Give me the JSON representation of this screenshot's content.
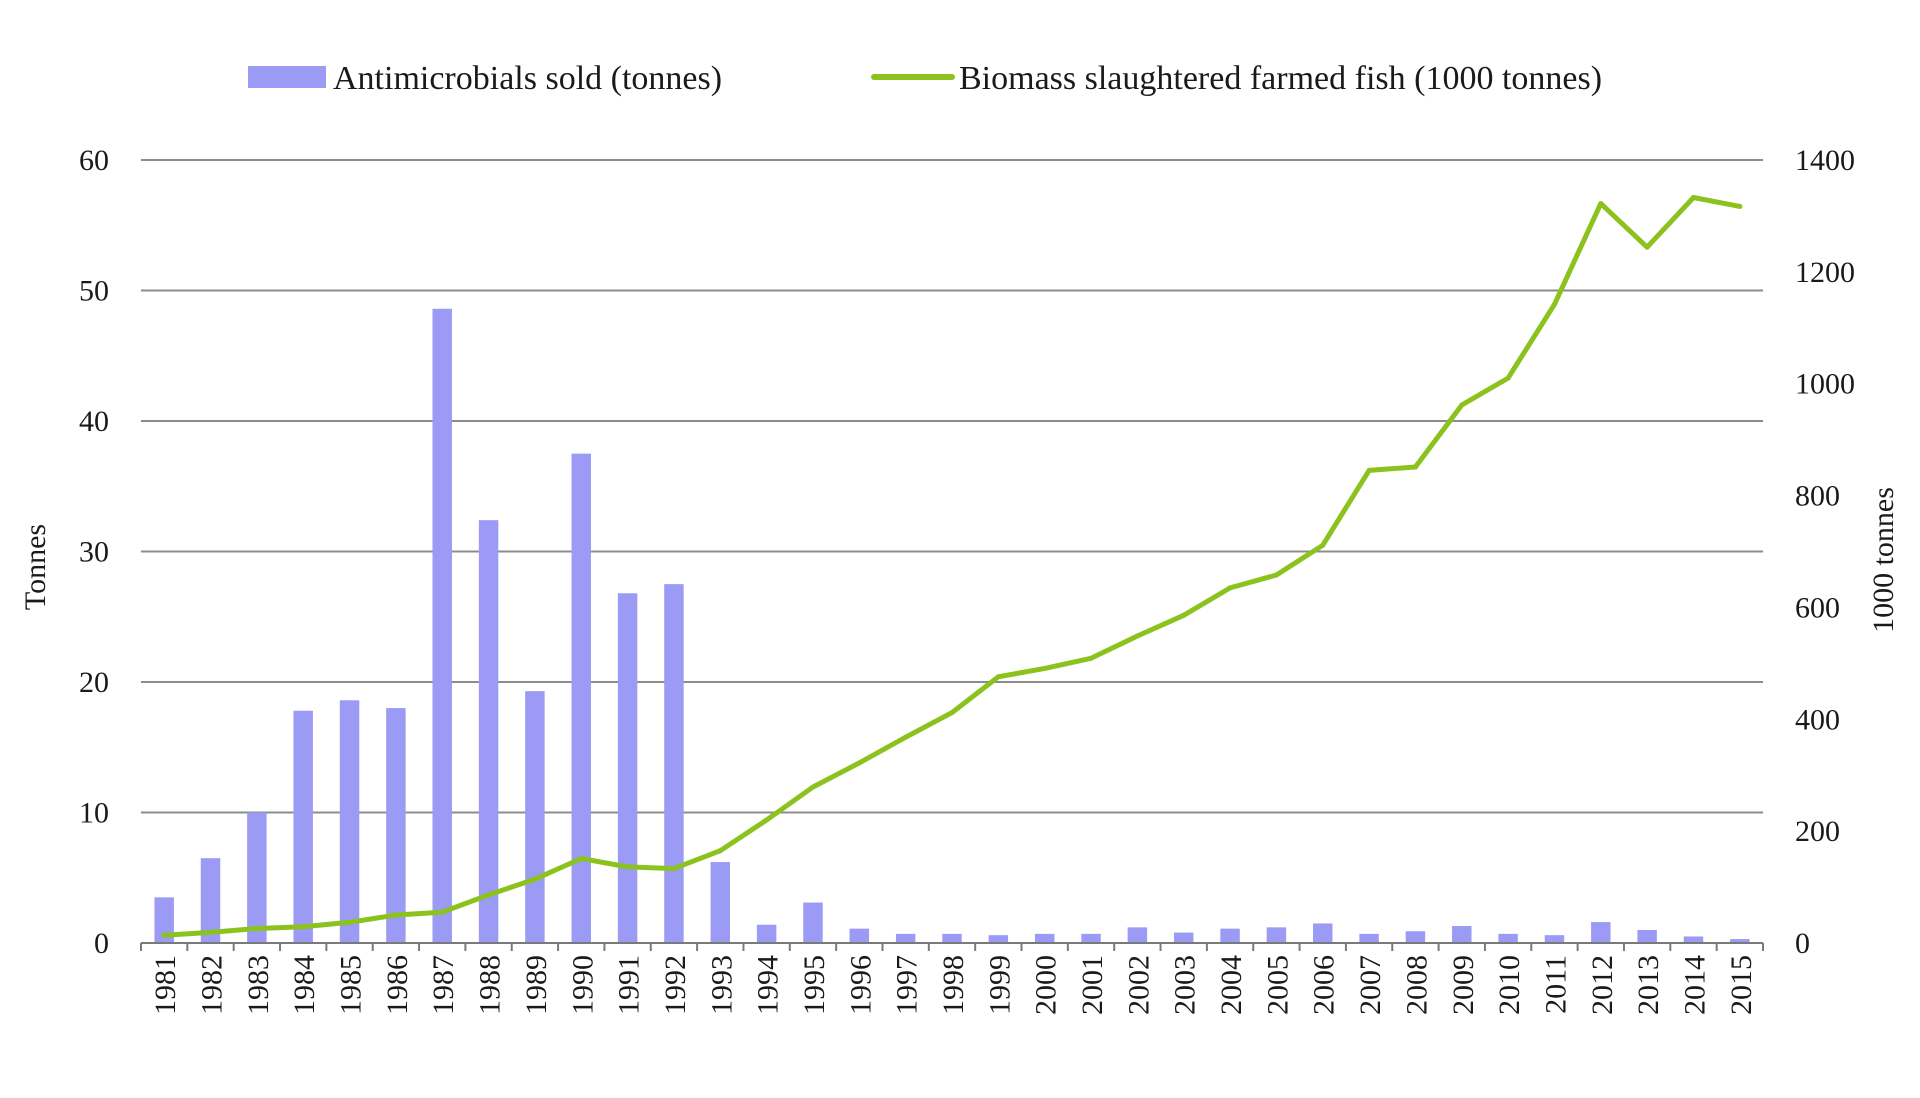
{
  "chart_data": {
    "type": "bar-line-combo",
    "categories": [
      "1981",
      "1982",
      "1983",
      "1984",
      "1985",
      "1986",
      "1987",
      "1988",
      "1989",
      "1990",
      "1991",
      "1992",
      "1993",
      "1994",
      "1995",
      "1996",
      "1997",
      "1998",
      "1999",
      "2000",
      "2001",
      "2002",
      "2003",
      "2004",
      "2005",
      "2006",
      "2007",
      "2008",
      "2009",
      "2010",
      "2011",
      "2012",
      "2013",
      "2014",
      "2015"
    ],
    "series": [
      {
        "name": "Antimicrobials sold (tonnes)",
        "kind": "bar",
        "axis": "left",
        "color": "#9b9bf5",
        "values": [
          3.5,
          6.5,
          10.0,
          17.8,
          18.6,
          18.0,
          48.6,
          32.4,
          19.3,
          37.5,
          26.8,
          27.5,
          6.2,
          1.4,
          3.1,
          1.1,
          0.7,
          0.7,
          0.6,
          0.7,
          0.7,
          1.2,
          0.8,
          1.1,
          1.2,
          1.5,
          0.7,
          0.9,
          1.3,
          0.7,
          0.6,
          1.6,
          1.0,
          0.5,
          0.3
        ]
      },
      {
        "name": "Biomass slaughtered farmed fish (1000 tonnes)",
        "kind": "line",
        "axis": "right",
        "color": "#8cc21e",
        "values": [
          14,
          19,
          26,
          29,
          37,
          50,
          55,
          86,
          114,
          151,
          136,
          133,
          165,
          220,
          279,
          322,
          368,
          412,
          476,
          491,
          509,
          549,
          586,
          635,
          658,
          711,
          845,
          851,
          962,
          1010,
          1142,
          1322,
          1244,
          1333,
          1317
        ]
      }
    ],
    "y_left": {
      "label": "Tonnes",
      "min": 0,
      "max": 60,
      "ticks": [
        0,
        10,
        20,
        30,
        40,
        50,
        60
      ]
    },
    "y_right": {
      "label": "1000 tonnes",
      "min": 0,
      "max": 1400,
      "ticks": [
        0,
        200,
        400,
        600,
        800,
        1000,
        1200,
        1400
      ]
    },
    "grid": true,
    "legend_position": "top-center"
  }
}
